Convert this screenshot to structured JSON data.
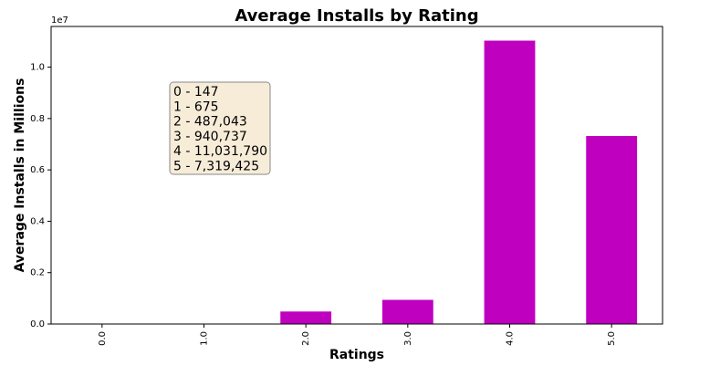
{
  "chart_data": {
    "type": "bar",
    "title": "Average Installs by Rating",
    "xlabel": "Ratings",
    "ylabel": "Average Installs in Millions",
    "categories": [
      "0.0",
      "1.0",
      "2.0",
      "3.0",
      "4.0",
      "5.0"
    ],
    "values": [
      147,
      675,
      487043,
      940737,
      11031790,
      7319425
    ],
    "ylim": [
      0,
      11583380
    ],
    "yticks": [
      0,
      2000000,
      4000000,
      6000000,
      8000000,
      10000000
    ],
    "ytick_labels": [
      "0.0",
      "0.2",
      "0.4",
      "0.6",
      "0.8",
      "1.0"
    ],
    "y_offset_label": "1e7",
    "bar_color": "#bf00bf",
    "grid": false,
    "annotation": {
      "lines": [
        "0 - 147",
        "1 - 675",
        "2 - 487,043",
        "3 - 940,737",
        "4 - 11,031,790",
        "5 - 7,319,425"
      ],
      "box_color": "#f7ecd8"
    }
  }
}
